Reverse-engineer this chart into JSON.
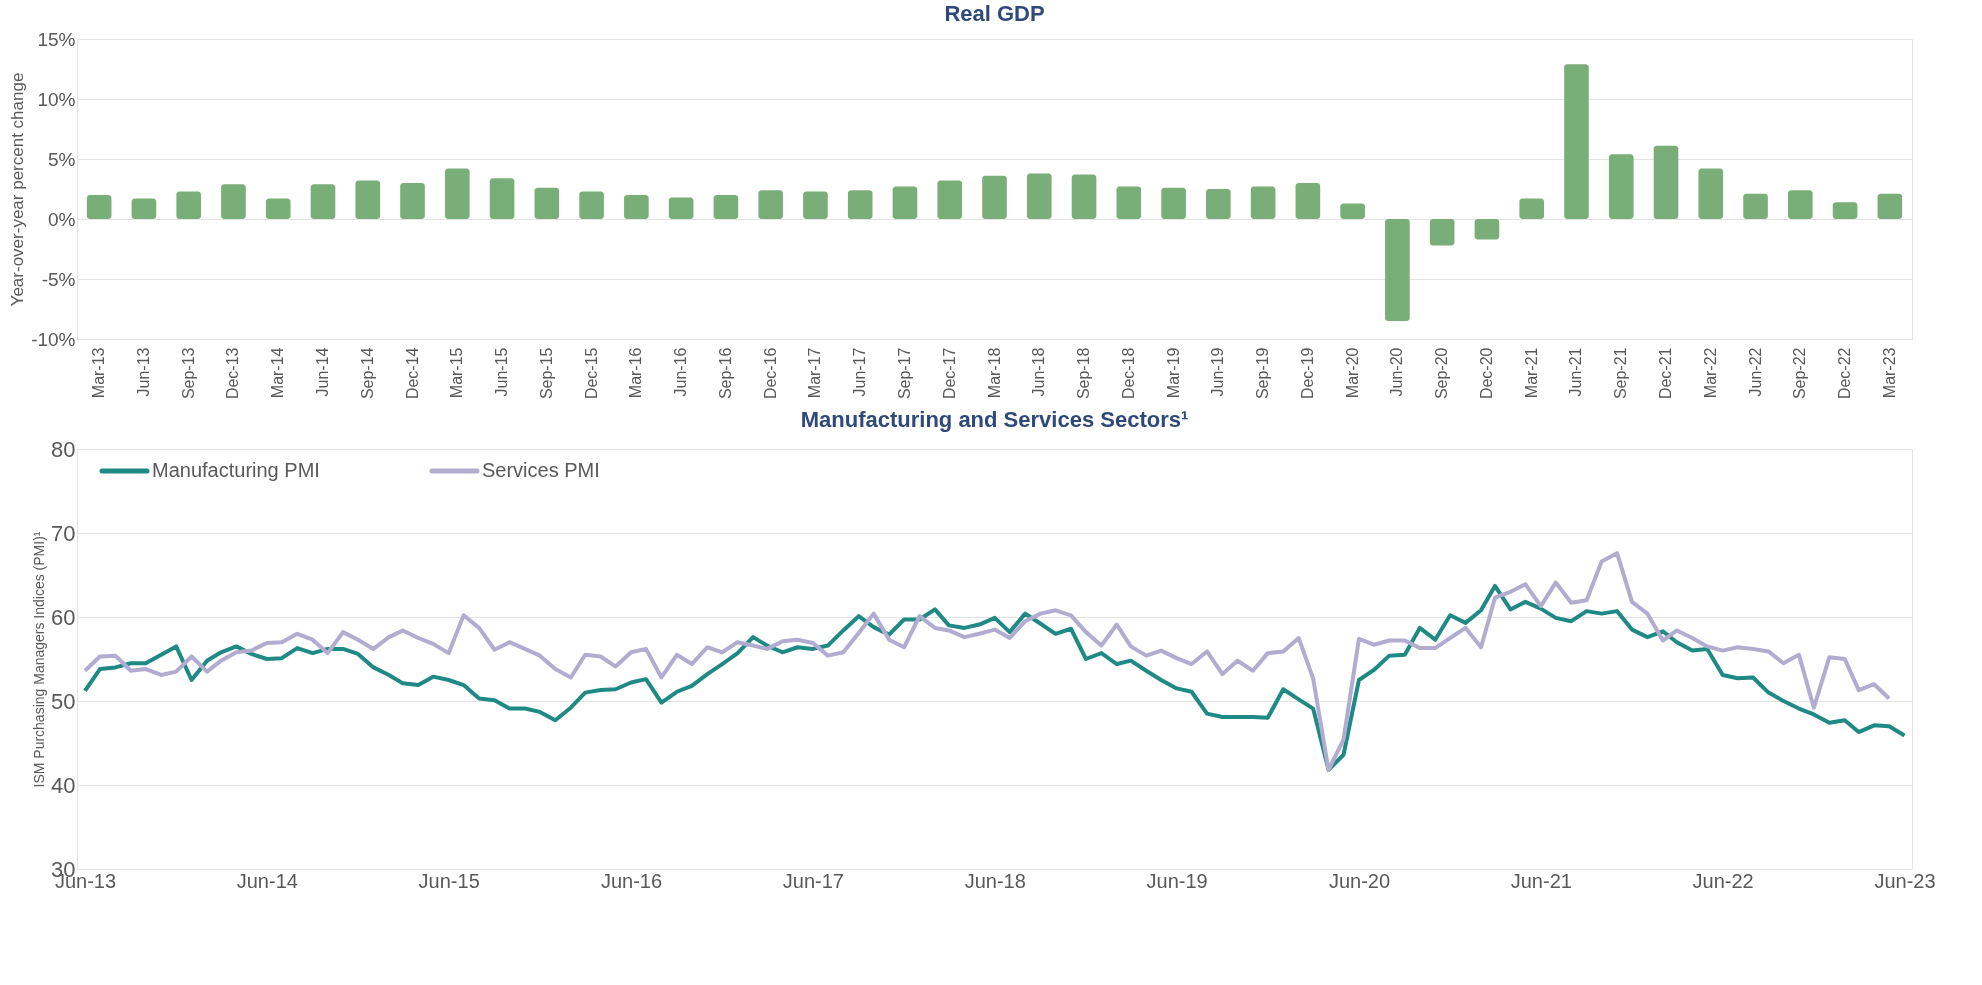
{
  "chart_data": [
    {
      "type": "bar",
      "title": "Real GDP",
      "ylabel": "Year-over-year percent change",
      "categories": [
        "Mar-13",
        "Jun-13",
        "Sep-13",
        "Dec-13",
        "Mar-14",
        "Jun-14",
        "Sep-14",
        "Dec-14",
        "Mar-15",
        "Jun-15",
        "Sep-15",
        "Dec-15",
        "Mar-16",
        "Jun-16",
        "Sep-16",
        "Dec-16",
        "Mar-17",
        "Jun-17",
        "Sep-17",
        "Dec-17",
        "Mar-18",
        "Jun-18",
        "Sep-18",
        "Dec-18",
        "Mar-19",
        "Jun-19",
        "Sep-19",
        "Dec-19",
        "Mar-20",
        "Jun-20",
        "Sep-20",
        "Dec-20",
        "Mar-21",
        "Jun-21",
        "Sep-21",
        "Dec-21",
        "Mar-22",
        "Jun-22",
        "Sep-22",
        "Dec-22",
        "Mar-23"
      ],
      "values": [
        2.0,
        1.7,
        2.3,
        2.9,
        1.7,
        2.9,
        3.2,
        3.0,
        4.2,
        3.4,
        2.6,
        2.3,
        2.0,
        1.8,
        2.0,
        2.4,
        2.3,
        2.4,
        2.7,
        3.2,
        3.6,
        3.8,
        3.7,
        2.7,
        2.6,
        2.5,
        2.7,
        3.0,
        1.3,
        -8.5,
        -2.2,
        -1.7,
        1.7,
        12.9,
        5.4,
        6.1,
        4.2,
        2.1,
        2.4,
        1.4,
        2.1
      ],
      "color": "#7aae78",
      "ylim": [
        -10,
        15
      ],
      "yticks": [
        {
          "value": -10,
          "label": "-10%"
        },
        {
          "value": -5,
          "label": "-5%"
        },
        {
          "value": 0,
          "label": "0%"
        },
        {
          "value": 5,
          "label": "5%"
        },
        {
          "value": 10,
          "label": "10%"
        },
        {
          "value": 15,
          "label": "15%"
        }
      ],
      "grid": "y"
    },
    {
      "type": "line",
      "title": "Manufacturing and Services Sectors¹",
      "ylabel": "ISM Purchasing Managers Indices (PMI)¹",
      "x": [
        "2013-06",
        "2013-07",
        "2013-08",
        "2013-09",
        "2013-10",
        "2013-11",
        "2013-12",
        "2014-01",
        "2014-02",
        "2014-03",
        "2014-04",
        "2014-05",
        "2014-06",
        "2014-07",
        "2014-08",
        "2014-09",
        "2014-10",
        "2014-11",
        "2014-12",
        "2015-01",
        "2015-02",
        "2015-03",
        "2015-04",
        "2015-05",
        "2015-06",
        "2015-07",
        "2015-08",
        "2015-09",
        "2015-10",
        "2015-11",
        "2015-12",
        "2016-01",
        "2016-02",
        "2016-03",
        "2016-04",
        "2016-05",
        "2016-06",
        "2016-07",
        "2016-08",
        "2016-09",
        "2016-10",
        "2016-11",
        "2016-12",
        "2017-01",
        "2017-02",
        "2017-03",
        "2017-04",
        "2017-05",
        "2017-06",
        "2017-07",
        "2017-08",
        "2017-09",
        "2017-10",
        "2017-11",
        "2017-12",
        "2018-01",
        "2018-02",
        "2018-03",
        "2018-04",
        "2018-05",
        "2018-06",
        "2018-07",
        "2018-08",
        "2018-09",
        "2018-10",
        "2018-11",
        "2018-12",
        "2019-01",
        "2019-02",
        "2019-03",
        "2019-04",
        "2019-05",
        "2019-06",
        "2019-07",
        "2019-08",
        "2019-09",
        "2019-10",
        "2019-11",
        "2019-12",
        "2020-01",
        "2020-02",
        "2020-03",
        "2020-04",
        "2020-05",
        "2020-06",
        "2020-07",
        "2020-08",
        "2020-09",
        "2020-10",
        "2020-11",
        "2020-12",
        "2021-01",
        "2021-02",
        "2021-03",
        "2021-04",
        "2021-05",
        "2021-06",
        "2021-07",
        "2021-08",
        "2021-09",
        "2021-10",
        "2021-11",
        "2021-12",
        "2022-01",
        "2022-02",
        "2022-03",
        "2022-04",
        "2022-05",
        "2022-06",
        "2022-07",
        "2022-08",
        "2022-09",
        "2022-10",
        "2022-11",
        "2022-12",
        "2023-01",
        "2023-02",
        "2023-03",
        "2023-04",
        "2023-05",
        "2023-06"
      ],
      "series": [
        {
          "name": "Manufacturing PMI",
          "color": "#1f8a85",
          "values": [
            51.2,
            53.8,
            54.0,
            54.5,
            54.5,
            55.5,
            56.5,
            52.5,
            54.8,
            55.8,
            56.5,
            55.6,
            55.0,
            55.1,
            56.3,
            55.7,
            56.2,
            56.2,
            55.6,
            54.0,
            53.1,
            52.1,
            51.9,
            52.9,
            52.5,
            51.9,
            50.3,
            50.1,
            49.1,
            49.1,
            48.7,
            47.7,
            49.2,
            51.0,
            51.3,
            51.4,
            52.2,
            52.6,
            49.8,
            51.1,
            51.8,
            53.2,
            54.4,
            55.7,
            57.6,
            56.6,
            55.8,
            56.4,
            56.2,
            56.6,
            58.4,
            60.1,
            58.8,
            57.9,
            59.7,
            59.7,
            60.9,
            59.0,
            58.7,
            59.1,
            59.9,
            58.2,
            60.4,
            59.2,
            58.0,
            58.6,
            55.0,
            55.7,
            54.4,
            54.8,
            53.6,
            52.5,
            51.5,
            51.1,
            48.5,
            48.1,
            48.1,
            48.1,
            48.0,
            51.4,
            50.2,
            49.1,
            41.8,
            43.6,
            52.5,
            53.7,
            55.4,
            55.5,
            58.7,
            57.3,
            60.2,
            59.3,
            60.8,
            63.7,
            60.9,
            61.8,
            61.0,
            59.9,
            59.5,
            60.7,
            60.4,
            60.7,
            58.5,
            57.6,
            58.3,
            57.0,
            56.0,
            56.2,
            53.1,
            52.7,
            52.8,
            51.0,
            50.0,
            49.1,
            48.4,
            47.4,
            47.7,
            46.3,
            47.1,
            47.0,
            45.9
          ]
        },
        {
          "name": "Services PMI",
          "color": "#b1acd0",
          "values": [
            53.6,
            55.3,
            55.4,
            53.6,
            53.8,
            53.1,
            53.5,
            55.3,
            53.5,
            54.8,
            55.8,
            56.0,
            56.9,
            57.0,
            58.0,
            57.3,
            55.7,
            58.2,
            57.3,
            56.2,
            57.6,
            58.4,
            57.5,
            56.8,
            55.7,
            60.2,
            58.7,
            56.1,
            57.0,
            56.2,
            55.4,
            53.8,
            52.8,
            55.5,
            55.3,
            54.1,
            55.8,
            56.2,
            52.8,
            55.5,
            54.4,
            56.4,
            55.8,
            57.0,
            56.6,
            56.2,
            57.1,
            57.3,
            56.9,
            55.4,
            55.8,
            58.1,
            60.4,
            57.3,
            56.4,
            60.1,
            58.7,
            58.4,
            57.6,
            58.0,
            58.5,
            57.5,
            59.5,
            60.4,
            60.8,
            60.2,
            58.2,
            56.6,
            59.1,
            56.5,
            55.4,
            56.0,
            55.1,
            54.4,
            55.9,
            53.2,
            54.8,
            53.6,
            55.7,
            55.9,
            57.5,
            52.7,
            41.8,
            45.4,
            57.4,
            56.7,
            57.2,
            57.2,
            56.3,
            56.3,
            57.5,
            58.7,
            56.4,
            62.3,
            63.0,
            63.9,
            61.3,
            64.1,
            61.7,
            62.0,
            66.6,
            67.6,
            61.8,
            60.4,
            57.2,
            58.4,
            57.5,
            56.5,
            56.0,
            56.4,
            56.2,
            55.9,
            54.5,
            55.5,
            49.2,
            55.2,
            55.0,
            51.3,
            52.0,
            50.3,
            null
          ]
        }
      ],
      "xlim": [
        "2013-05-16",
        "2023-06-16"
      ],
      "xticks": [
        {
          "value": "2013-06",
          "label": "Jun-13"
        },
        {
          "value": "2014-06",
          "label": "Jun-14"
        },
        {
          "value": "2015-06",
          "label": "Jun-15"
        },
        {
          "value": "2016-06",
          "label": "Jun-16"
        },
        {
          "value": "2017-06",
          "label": "Jun-17"
        },
        {
          "value": "2018-06",
          "label": "Jun-18"
        },
        {
          "value": "2019-06",
          "label": "Jun-19"
        },
        {
          "value": "2020-06",
          "label": "Jun-20"
        },
        {
          "value": "2021-06",
          "label": "Jun-21"
        },
        {
          "value": "2022-06",
          "label": "Jun-22"
        },
        {
          "value": "2023-06",
          "label": "Jun-23"
        }
      ],
      "ylim": [
        30,
        80
      ],
      "yticks": [
        30,
        40,
        50,
        60,
        70,
        80
      ],
      "grid": "y",
      "legend": "top left",
      "marker": "none",
      "line_style": "solid"
    }
  ]
}
